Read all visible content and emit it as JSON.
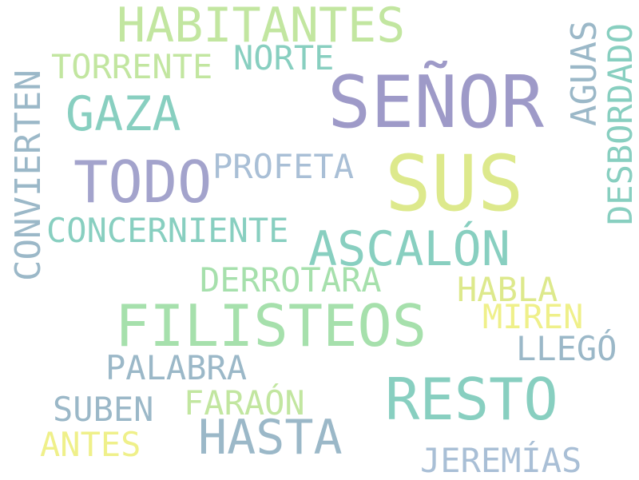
{
  "palette": {
    "purple": "#9e9ac8",
    "lavender": "#a3a3cc",
    "teal": "#88cfc0",
    "green": "#a6e0ac",
    "lightgreen": "#c2e6a0",
    "yellow": "#dde98c",
    "paleyellow": "#eff08a",
    "slate": "#9bb8c8",
    "bluegray": "#a9bfd6"
  },
  "words": {
    "habitantes": "HABITANTES",
    "norte": "NORTE",
    "torrente": "TORRENTE",
    "gaza": "GAZA",
    "senor": "SEÑOR",
    "aguas": "AGUAS",
    "desbordado": "DESBORDADO",
    "conviertan": "CONVIERTEN",
    "todo": "TODO",
    "profeta": "PROFETA",
    "sus": "SUS",
    "concerniente": "CONCERNIENTE",
    "ascalon": "ASCALÓN",
    "derrotara": "DERROTARA",
    "habla": "HABLA",
    "miren": "MIREN",
    "filisteos": "FILISTEOS",
    "llego": "LLEGÓ",
    "palabra": "PALABRA",
    "resto": "RESTO",
    "suben": "SUBEN",
    "faraon": "FARAÓN",
    "antes": "ANTES",
    "hasta": "HASTA",
    "jeremias": "JEREMÍAS"
  }
}
